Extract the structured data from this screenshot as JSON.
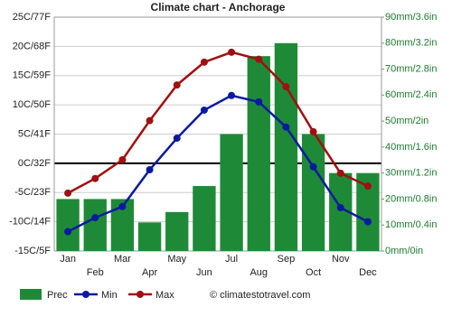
{
  "chart_data": {
    "type": "climate",
    "title": "Climate chart - Anchorage",
    "categories": [
      "Jan",
      "Feb",
      "Mar",
      "Apr",
      "May",
      "Jun",
      "Jul",
      "Aug",
      "Sep",
      "Oct",
      "Nov",
      "Dec"
    ],
    "series": [
      {
        "name": "Prec",
        "type": "bar",
        "axis": "y2",
        "color": "#1e8a37",
        "values": [
          20,
          20,
          20,
          11,
          15,
          25,
          45,
          75,
          80,
          45,
          30,
          30
        ]
      },
      {
        "name": "Min",
        "type": "line",
        "color": "#0a1aa0",
        "values": [
          -11.7,
          -9.3,
          -7.4,
          -1.1,
          4.3,
          9.1,
          11.6,
          10.5,
          6.2,
          -0.6,
          -7.6,
          -10.0
        ]
      },
      {
        "name": "Max",
        "type": "line",
        "color": "#a01010",
        "values": [
          -5.1,
          -2.6,
          0.6,
          7.3,
          13.4,
          17.3,
          19.0,
          17.8,
          13.1,
          5.4,
          -1.7,
          -3.9
        ]
      }
    ],
    "ylim": [
      -15,
      25
    ],
    "yticks": [
      {
        "value": -15,
        "label": "-15C/5F"
      },
      {
        "value": -10,
        "label": "-10C/14F"
      },
      {
        "value": -5,
        "label": "-5C/23F"
      },
      {
        "value": 0,
        "label": "0C/32F"
      },
      {
        "value": 5,
        "label": "5C/41F"
      },
      {
        "value": 10,
        "label": "10C/50F"
      },
      {
        "value": 15,
        "label": "15C/59F"
      },
      {
        "value": 20,
        "label": "20C/68F"
      },
      {
        "value": 25,
        "label": "25C/77F"
      }
    ],
    "y2lim": [
      0,
      90
    ],
    "y2ticks": [
      {
        "value": 0,
        "label": "0mm/0in"
      },
      {
        "value": 10,
        "label": "10mm/0.4in"
      },
      {
        "value": 20,
        "label": "20mm/0.8in"
      },
      {
        "value": 30,
        "label": "30mm/1.2in"
      },
      {
        "value": 40,
        "label": "40mm/1.6in"
      },
      {
        "value": 50,
        "label": "50mm/2in"
      },
      {
        "value": 60,
        "label": "60mm/2.4in"
      },
      {
        "value": 70,
        "label": "70mm/2.8in"
      },
      {
        "value": 80,
        "label": "80mm/3.2in"
      },
      {
        "value": 90,
        "label": "90mm/3.6in"
      }
    ],
    "grid": true,
    "legend": "bottom",
    "source": "© climatestotravel.com"
  }
}
